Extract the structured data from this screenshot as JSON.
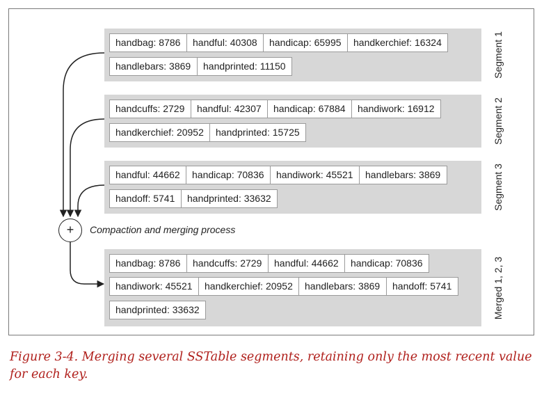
{
  "segments": [
    {
      "label": "Segment 1",
      "rows": [
        [
          {
            "key": "handbag",
            "value": "8786"
          },
          {
            "key": "handful",
            "value": "40308"
          },
          {
            "key": "handicap",
            "value": "65995"
          },
          {
            "key": "handkerchief",
            "value": "16324"
          }
        ],
        [
          {
            "key": "handlebars",
            "value": "3869"
          },
          {
            "key": "handprinted",
            "value": "11150"
          }
        ]
      ]
    },
    {
      "label": "Segment 2",
      "rows": [
        [
          {
            "key": "handcuffs",
            "value": "2729"
          },
          {
            "key": "handful",
            "value": "42307"
          },
          {
            "key": "handicap",
            "value": "67884"
          },
          {
            "key": "handiwork",
            "value": "16912"
          }
        ],
        [
          {
            "key": "handkerchief",
            "value": "20952"
          },
          {
            "key": "handprinted",
            "value": "15725"
          }
        ]
      ]
    },
    {
      "label": "Segment 3",
      "rows": [
        [
          {
            "key": "handful",
            "value": "44662"
          },
          {
            "key": "handicap",
            "value": "70836"
          },
          {
            "key": "handiwork",
            "value": "45521"
          },
          {
            "key": "handlebars",
            "value": "3869"
          }
        ],
        [
          {
            "key": "handoff",
            "value": "5741"
          },
          {
            "key": "handprinted",
            "value": "33632"
          }
        ]
      ]
    },
    {
      "label": "Merged 1, 2, 3",
      "rows": [
        [
          {
            "key": "handbag",
            "value": "8786"
          },
          {
            "key": "handcuffs",
            "value": "2729"
          },
          {
            "key": "handful",
            "value": "44662"
          },
          {
            "key": "handicap",
            "value": "70836"
          }
        ],
        [
          {
            "key": "handiwork",
            "value": "45521"
          },
          {
            "key": "handkerchief",
            "value": "20952"
          },
          {
            "key": "handlebars",
            "value": "3869"
          },
          {
            "key": "handoff",
            "value": "5741"
          }
        ],
        [
          {
            "key": "handprinted",
            "value": "33632"
          }
        ]
      ]
    }
  ],
  "merge": {
    "symbol": "+",
    "label": "Compaction and merging process"
  },
  "caption": "Figure 3-4. Merging several SSTable segments, retaining only the most recent value for each key.",
  "colors": {
    "segment_bg": "#d7d7d7",
    "cell_border": "#9a9a9a",
    "caption": "#b0201c",
    "line": "#222222"
  }
}
